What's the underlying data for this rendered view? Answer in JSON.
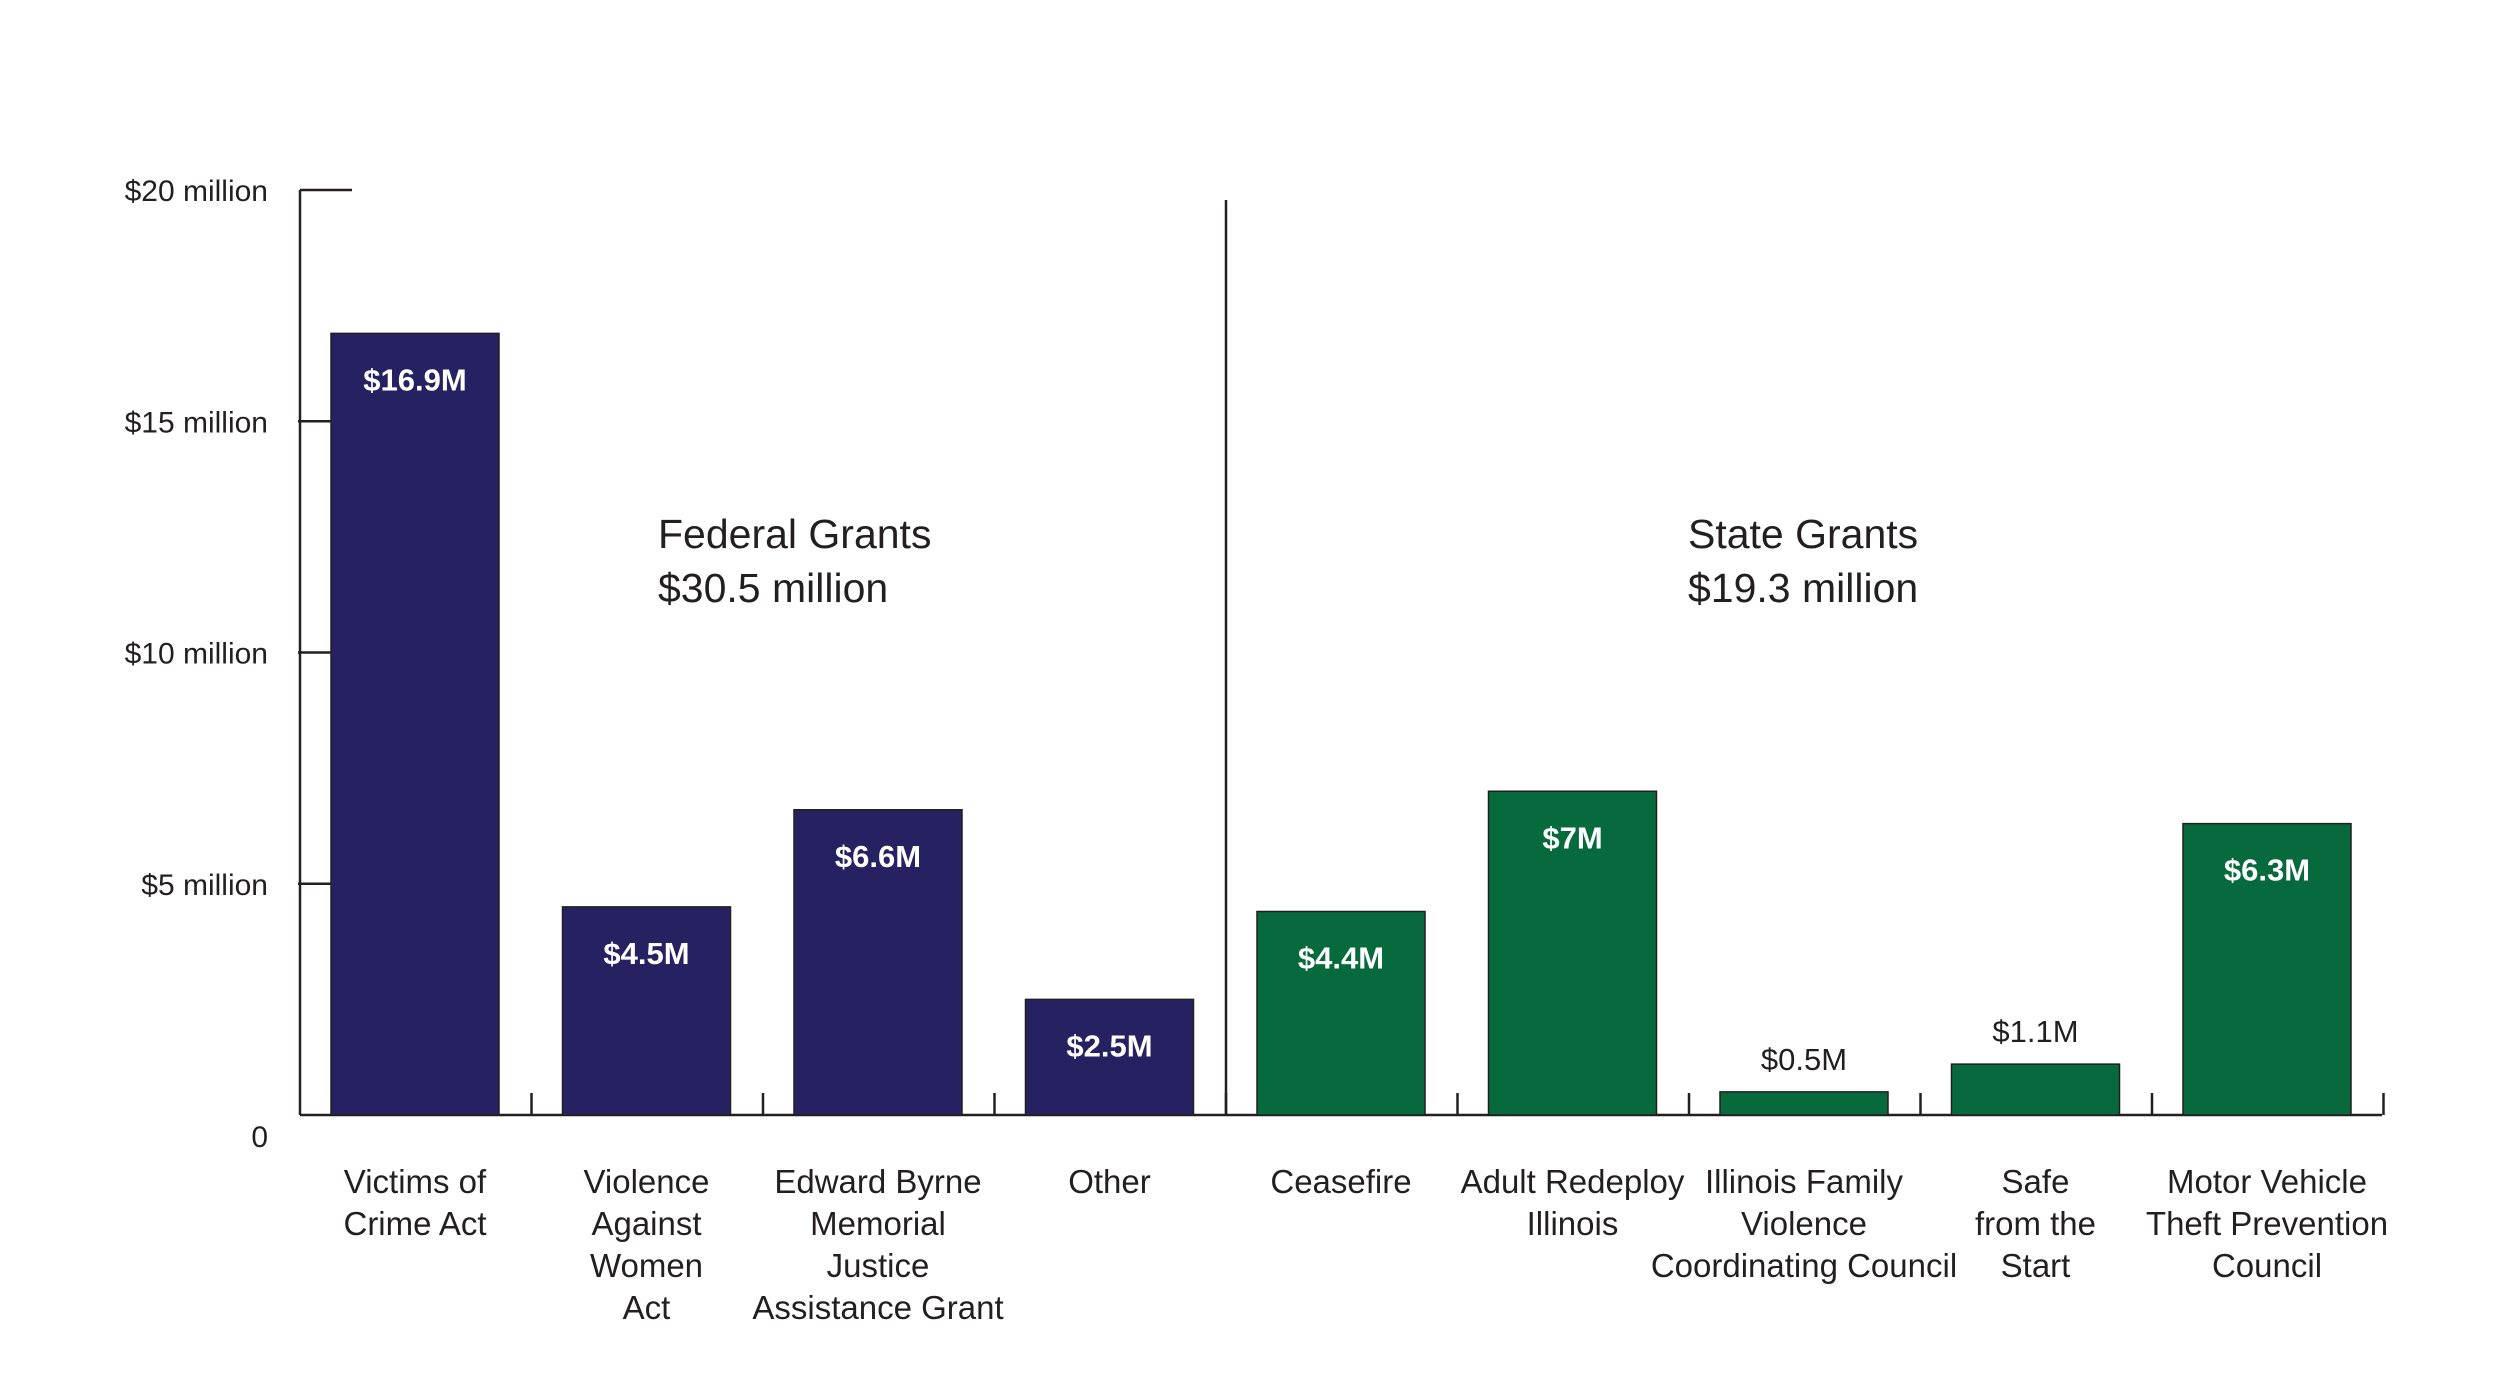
{
  "chart_data": {
    "type": "bar",
    "categories": [
      [
        "Victims of",
        "Crime Act"
      ],
      [
        "Violence",
        "Against",
        "Women",
        "Act"
      ],
      [
        "Edward Byrne",
        "Memorial",
        "Justice",
        "Assistance Grant"
      ],
      [
        "Other"
      ],
      [
        "Ceasefire"
      ],
      [
        "Adult Redeploy",
        "Illinois"
      ],
      [
        "Illinois Family",
        "Violence",
        "Coordinating Council"
      ],
      [
        "Safe",
        "from the",
        "Start"
      ],
      [
        "Motor Vehicle",
        "Theft Prevention",
        "Council"
      ]
    ],
    "values": [
      16.9,
      4.5,
      6.6,
      2.5,
      4.4,
      7,
      0.5,
      1.1,
      6.3
    ],
    "data_labels": [
      "$16.9M",
      "$4.5M",
      "$6.6M",
      "$2.5M",
      "$4.4M",
      "$7M",
      "$0.5M",
      "$1.1M",
      "$6.3M"
    ],
    "groups": [
      {
        "title": "Federal Grants",
        "total": "$30.5 million",
        "color": "#262262",
        "indices": [
          0,
          1,
          2,
          3
        ]
      },
      {
        "title": "State Grants",
        "total": "$19.3 million",
        "color": "#076a3c",
        "indices": [
          4,
          5,
          6,
          7,
          8
        ]
      }
    ],
    "yticks": [
      {
        "value": 0,
        "label": "0"
      },
      {
        "value": 5,
        "label": "$5 million"
      },
      {
        "value": 10,
        "label": "$10 million"
      },
      {
        "value": 15,
        "label": "$15 million"
      },
      {
        "value": 20,
        "label": "$20 million"
      }
    ],
    "ylim": [
      0,
      20
    ],
    "title": "",
    "xlabel": "",
    "ylabel": "",
    "grid": false,
    "legend": "none"
  }
}
